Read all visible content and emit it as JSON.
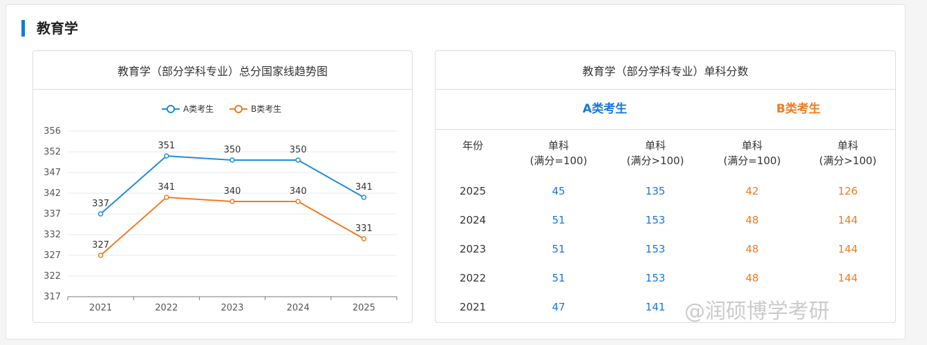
{
  "section": {
    "title": "教育学"
  },
  "chart_card": {
    "title": "教育学（部分学科专业）总分国家线趋势图"
  },
  "chart_data": {
    "type": "line",
    "title": "教育学（部分学科专业）总分国家线趋势图",
    "x": [
      "2021",
      "2022",
      "2023",
      "2024",
      "2025"
    ],
    "yticks": [
      317,
      322,
      327,
      332,
      337,
      342,
      347,
      352,
      356
    ],
    "ylim": [
      317,
      356
    ],
    "grid": true,
    "legend": "top-center",
    "series": [
      {
        "name": "A类考生",
        "values": [
          337,
          351,
          350,
          350,
          341
        ],
        "color": "#1f8be0"
      },
      {
        "name": "B类考生",
        "values": [
          327,
          341,
          340,
          340,
          331
        ],
        "color": "#f07a22"
      }
    ]
  },
  "table_card": {
    "title": "教育学（部分学科专业）单科分数",
    "group_a": "A类考生",
    "group_b": "B类考生",
    "col_year": "年份",
    "col_labels": [
      [
        "单科",
        "(满分=100)"
      ],
      [
        "单科",
        "(满分>100)"
      ],
      [
        "单科",
        "(满分=100)"
      ],
      [
        "单科",
        "(满分>100)"
      ]
    ],
    "rows": [
      {
        "year": "2025",
        "a1": "45",
        "a2": "135",
        "b1": "42",
        "b2": "126"
      },
      {
        "year": "2024",
        "a1": "51",
        "a2": "153",
        "b1": "48",
        "b2": "144"
      },
      {
        "year": "2023",
        "a1": "51",
        "a2": "153",
        "b1": "48",
        "b2": "144"
      },
      {
        "year": "2022",
        "a1": "51",
        "a2": "153",
        "b1": "48",
        "b2": "144"
      },
      {
        "year": "2021",
        "a1": "47",
        "a2": "141",
        "b1": "",
        "b2": ""
      }
    ]
  },
  "watermark": "@润硕博学考研",
  "colors": {
    "accent": "#1677d9",
    "a_series": "#1f8be0",
    "b_series": "#f07a22"
  }
}
